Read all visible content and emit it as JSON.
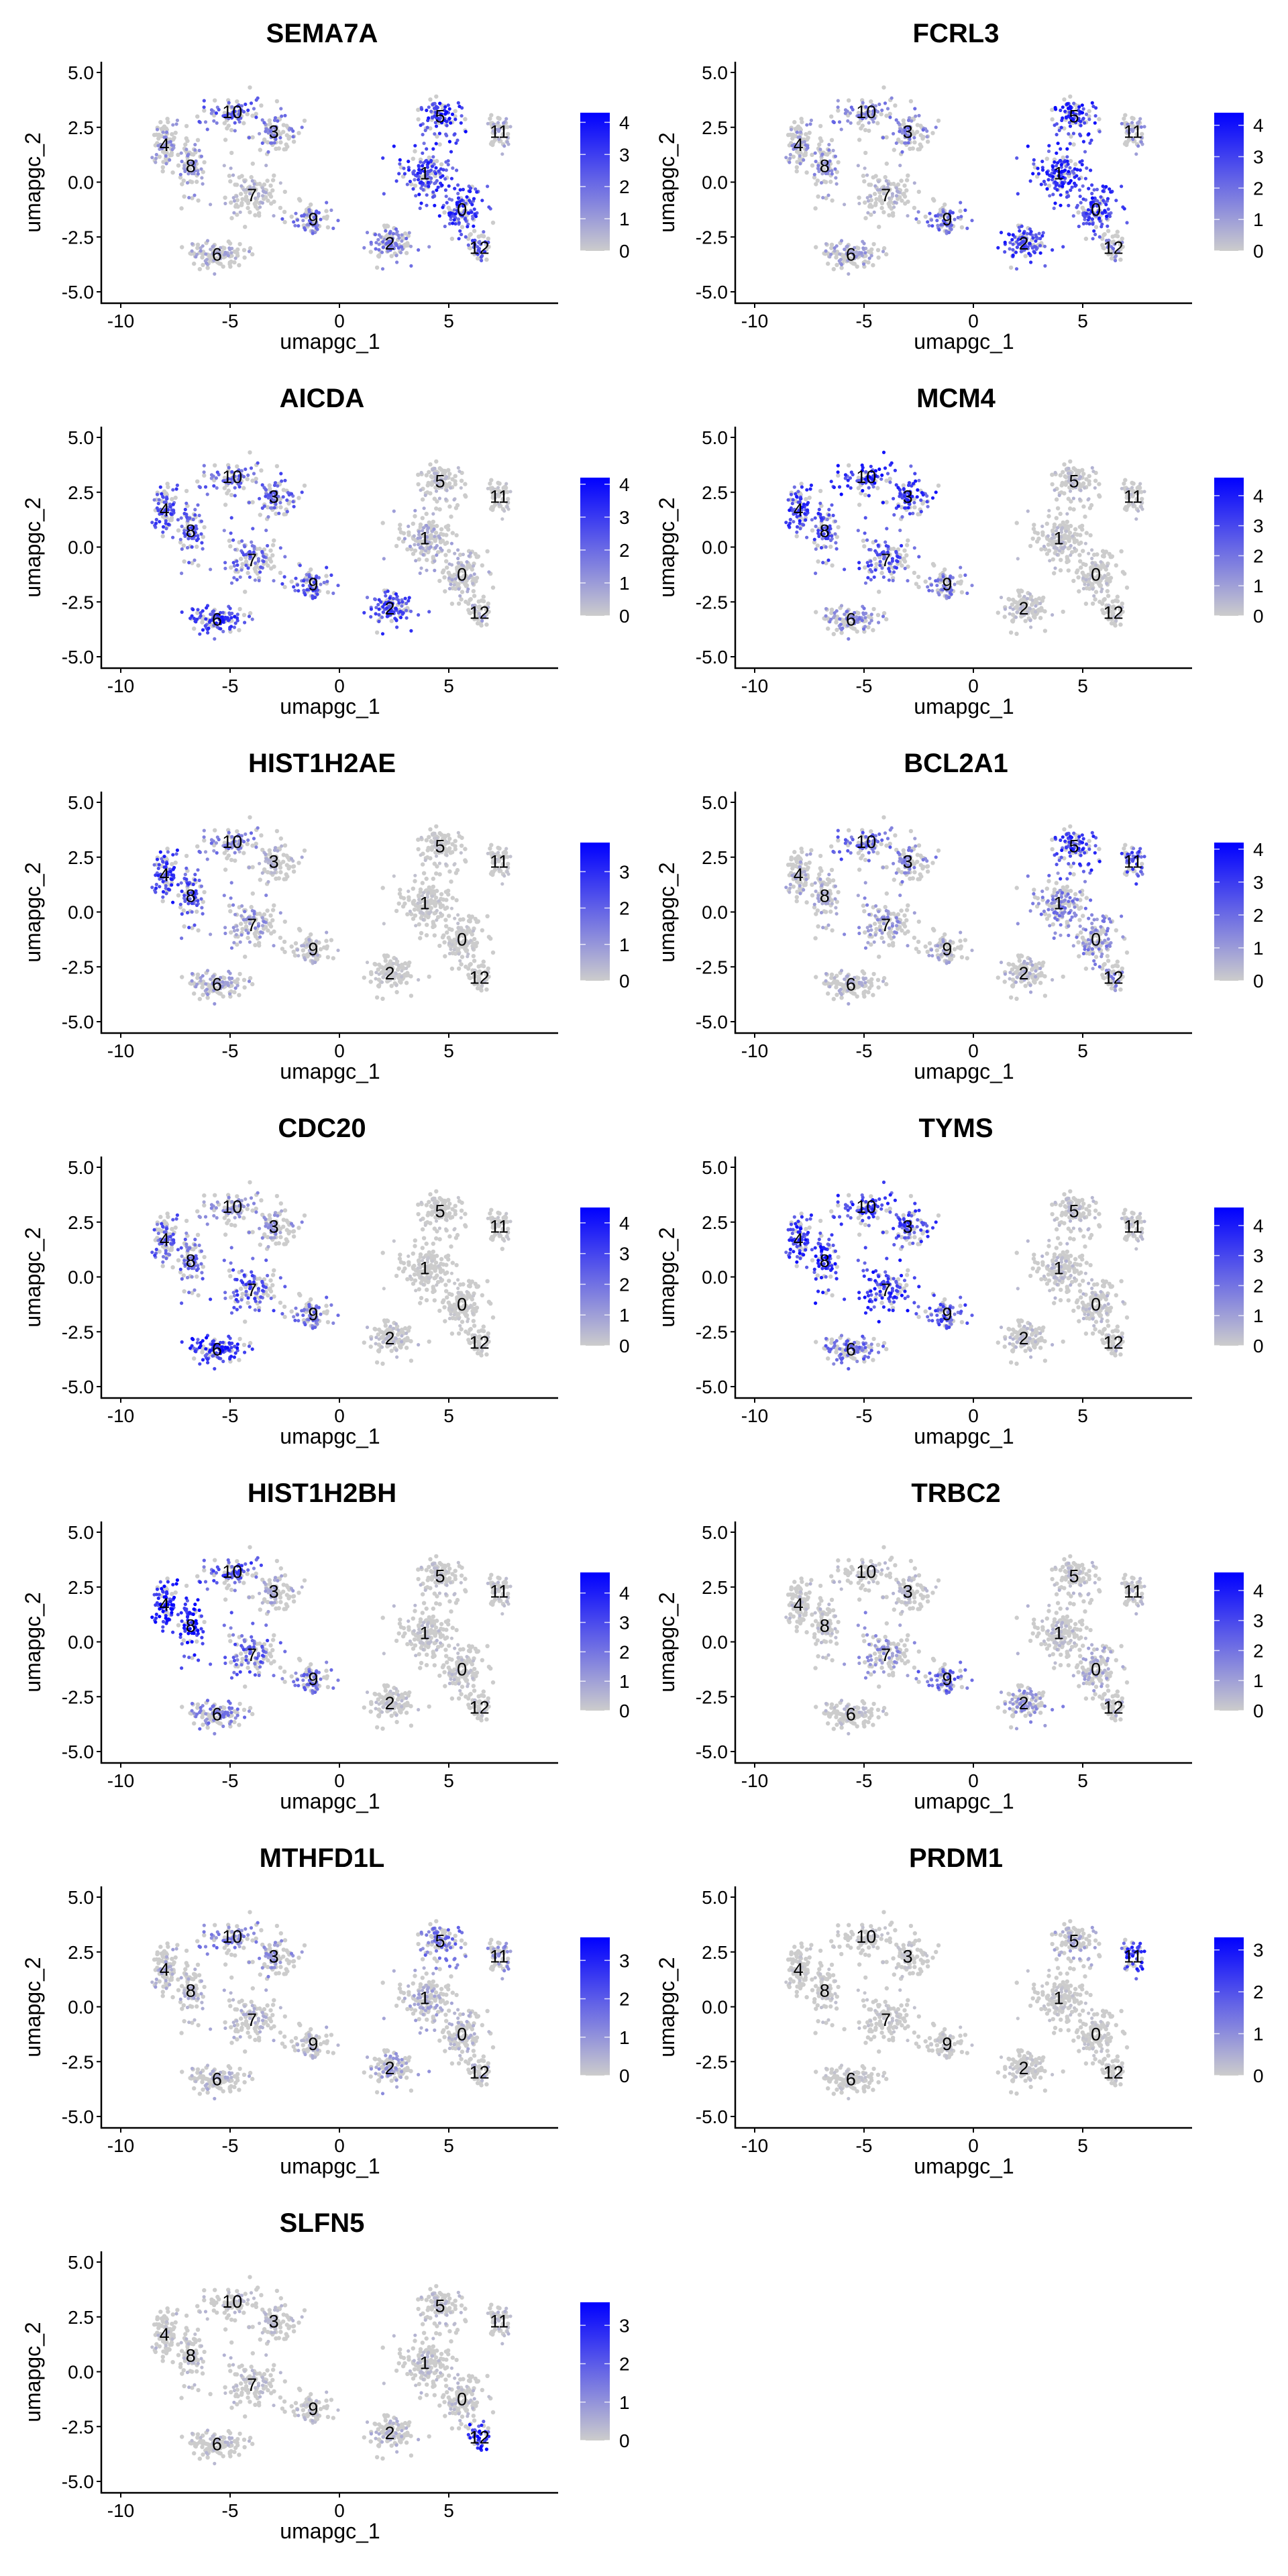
{
  "chart_data": {
    "type": "scatter",
    "subtype": "feature-plot-grid",
    "xlabel": "umapgc_1",
    "ylabel": "umapgc_2",
    "xlim": [
      -11,
      10
    ],
    "ylim": [
      -5.5,
      5.5
    ],
    "xticks": [
      -10,
      -5,
      0,
      5
    ],
    "xtick_labels": [
      "-10",
      "-5",
      "0",
      "5"
    ],
    "yticks": [
      5.0,
      2.5,
      0.0,
      -2.5,
      -5.0
    ],
    "ytick_labels": [
      "5.0",
      "2.5",
      "0.0",
      "-2.5",
      "-5.0"
    ],
    "grid": false,
    "legend_position": "right",
    "color_low": "#cccccc",
    "color_high": "#0000ff",
    "clusters": [
      {
        "label": "0",
        "x": 5.6,
        "y": -1.25
      },
      {
        "label": "1",
        "x": 3.9,
        "y": 0.4
      },
      {
        "label": "2",
        "x": 2.3,
        "y": -2.8
      },
      {
        "label": "3",
        "x": -3.0,
        "y": 2.3
      },
      {
        "label": "4",
        "x": -8.0,
        "y": 1.7
      },
      {
        "label": "5",
        "x": 4.6,
        "y": 3.0
      },
      {
        "label": "6",
        "x": -5.6,
        "y": -3.3
      },
      {
        "label": "7",
        "x": -4.0,
        "y": -0.6
      },
      {
        "label": "8",
        "x": -6.8,
        "y": 0.74
      },
      {
        "label": "9",
        "x": -1.2,
        "y": -1.7
      },
      {
        "label": "10",
        "x": -4.9,
        "y": 3.19
      },
      {
        "label": "11",
        "x": 7.3,
        "y": 2.3
      },
      {
        "label": "12",
        "x": 6.4,
        "y": -3.0
      }
    ],
    "panels": [
      {
        "gene": "SEMA7A",
        "max": 4.3,
        "legend_ticks": [
          "0",
          "1",
          "2",
          "3",
          "4"
        ],
        "expression": {
          "0": 0.7,
          "1": 0.7,
          "2": 0.4,
          "3": 0.4,
          "4": 0.3,
          "5": 0.75,
          "6": 0.2,
          "7": 0.15,
          "8": 0.3,
          "9": 0.45,
          "10": 0.55,
          "11": 0.2,
          "12": 0.6
        }
      },
      {
        "gene": "FCRL3",
        "max": 4.4,
        "legend_ticks": [
          "0",
          "1",
          "2",
          "3",
          "4"
        ],
        "expression": {
          "0": 0.75,
          "1": 0.75,
          "2": 0.7,
          "3": 0.4,
          "4": 0.3,
          "5": 0.75,
          "6": 0.25,
          "7": 0.15,
          "8": 0.3,
          "9": 0.5,
          "10": 0.4,
          "11": 0.3,
          "12": 0.4
        }
      },
      {
        "gene": "AICDA",
        "max": 4.2,
        "legend_ticks": [
          "0",
          "1",
          "2",
          "3",
          "4"
        ],
        "expression": {
          "0": 0.15,
          "1": 0.2,
          "2": 0.65,
          "3": 0.55,
          "4": 0.6,
          "5": 0.1,
          "6": 0.7,
          "7": 0.5,
          "8": 0.55,
          "9": 0.55,
          "10": 0.5,
          "11": 0.05,
          "12": 0.2
        }
      },
      {
        "gene": "MCM4",
        "max": 4.6,
        "legend_ticks": [
          "0",
          "1",
          "2",
          "3",
          "4"
        ],
        "expression": {
          "0": 0.08,
          "1": 0.1,
          "2": 0.1,
          "3": 0.7,
          "4": 0.7,
          "5": 0.1,
          "6": 0.35,
          "7": 0.6,
          "8": 0.6,
          "9": 0.4,
          "10": 0.75,
          "11": 0.08,
          "12": 0.08
        }
      },
      {
        "gene": "HIST1H2AE",
        "max": 3.8,
        "legend_ticks": [
          "0",
          "1",
          "2",
          "3"
        ],
        "expression": {
          "0": 0.05,
          "1": 0.05,
          "2": 0.05,
          "3": 0.15,
          "4": 0.7,
          "5": 0.05,
          "6": 0.25,
          "7": 0.3,
          "8": 0.6,
          "9": 0.15,
          "10": 0.4,
          "11": 0.05,
          "12": 0.05
        }
      },
      {
        "gene": "BCL2A1",
        "max": 4.2,
        "legend_ticks": [
          "0",
          "1",
          "2",
          "3",
          "4"
        ],
        "expression": {
          "0": 0.35,
          "1": 0.4,
          "2": 0.15,
          "3": 0.35,
          "4": 0.2,
          "5": 0.7,
          "6": 0.15,
          "7": 0.3,
          "8": 0.2,
          "9": 0.2,
          "10": 0.55,
          "11": 0.6,
          "12": 0.35
        }
      },
      {
        "gene": "CDC20",
        "max": 4.5,
        "legend_ticks": [
          "0",
          "1",
          "2",
          "3",
          "4"
        ],
        "expression": {
          "0": 0.03,
          "1": 0.03,
          "2": 0.1,
          "3": 0.3,
          "4": 0.55,
          "5": 0.03,
          "6": 0.75,
          "7": 0.6,
          "8": 0.5,
          "9": 0.45,
          "10": 0.3,
          "11": 0.03,
          "12": 0.05
        }
      },
      {
        "gene": "TYMS",
        "max": 4.6,
        "legend_ticks": [
          "0",
          "1",
          "2",
          "3",
          "4"
        ],
        "expression": {
          "0": 0.1,
          "1": 0.1,
          "2": 0.1,
          "3": 0.65,
          "4": 0.75,
          "5": 0.1,
          "6": 0.5,
          "7": 0.75,
          "8": 0.75,
          "9": 0.6,
          "10": 0.7,
          "11": 0.08,
          "12": 0.1
        }
      },
      {
        "gene": "HIST1H2BH",
        "max": 4.7,
        "legend_ticks": [
          "0",
          "1",
          "2",
          "3",
          "4"
        ],
        "expression": {
          "0": 0.08,
          "1": 0.08,
          "2": 0.08,
          "3": 0.2,
          "4": 0.85,
          "5": 0.08,
          "6": 0.4,
          "7": 0.55,
          "8": 0.85,
          "9": 0.45,
          "10": 0.6,
          "11": 0.08,
          "12": 0.08
        }
      },
      {
        "gene": "TRBC2",
        "max": 4.6,
        "legend_ticks": [
          "0",
          "1",
          "2",
          "3",
          "4"
        ],
        "expression": {
          "0": 0.2,
          "1": 0.1,
          "2": 0.3,
          "3": 0.1,
          "4": 0.1,
          "5": 0.1,
          "6": 0.1,
          "7": 0.3,
          "8": 0.1,
          "9": 0.5,
          "10": 0.1,
          "11": 0.1,
          "12": 0.15
        }
      },
      {
        "gene": "MTHFD1L",
        "max": 3.6,
        "legend_ticks": [
          "0",
          "1",
          "2",
          "3"
        ],
        "expression": {
          "0": 0.15,
          "1": 0.2,
          "2": 0.25,
          "3": 0.3,
          "4": 0.2,
          "5": 0.45,
          "6": 0.15,
          "7": 0.15,
          "8": 0.15,
          "9": 0.15,
          "10": 0.4,
          "11": 0.3,
          "12": 0.15
        }
      },
      {
        "gene": "PRDM1",
        "max": 3.3,
        "legend_ticks": [
          "0",
          "1",
          "2",
          "3"
        ],
        "expression": {
          "0": 0.05,
          "1": 0.05,
          "2": 0.05,
          "3": 0.05,
          "4": 0.05,
          "5": 0.2,
          "6": 0.05,
          "7": 0.05,
          "8": 0.05,
          "9": 0.05,
          "10": 0.05,
          "11": 0.7,
          "12": 0.05
        }
      },
      {
        "gene": "SLFN5",
        "max": 3.6,
        "legend_ticks": [
          "0",
          "1",
          "2",
          "3"
        ],
        "expression": {
          "0": 0.1,
          "1": 0.1,
          "2": 0.15,
          "3": 0.1,
          "4": 0.1,
          "5": 0.1,
          "6": 0.1,
          "7": 0.1,
          "8": 0.1,
          "9": 0.1,
          "10": 0.1,
          "11": 0.1,
          "12": 0.8
        }
      }
    ]
  }
}
